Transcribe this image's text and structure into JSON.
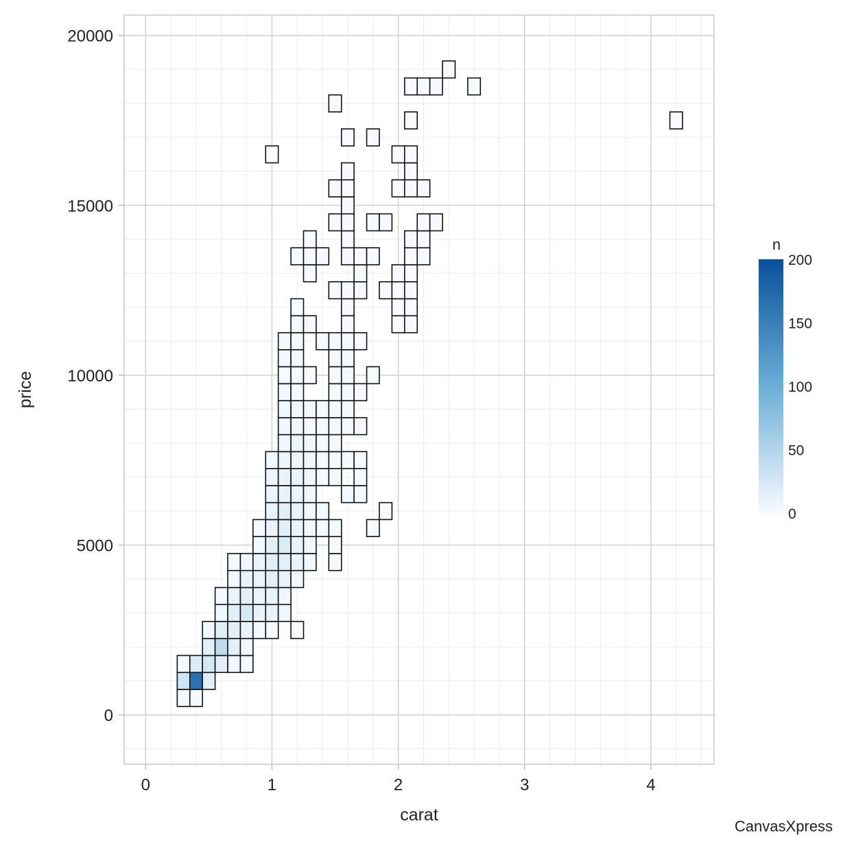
{
  "chart_data": {
    "type": "heatmap",
    "subtype": "binned-2d",
    "xlabel": "carat",
    "ylabel": "price",
    "xlim": [
      -0.17,
      4.5
    ],
    "ylim": [
      -1450,
      20600
    ],
    "xticks": [
      0,
      1,
      2,
      3,
      4
    ],
    "yticks": [
      0,
      5000,
      10000,
      15000,
      20000
    ],
    "grid": true,
    "bin_width": {
      "x": 0.1,
      "y": 500
    },
    "color_scale": {
      "title": "n",
      "min": 0,
      "max": 200,
      "ticks": [
        0,
        50,
        100,
        150,
        200
      ],
      "low_color": "#f7fbff",
      "high_color": "#08519c"
    },
    "legend_position": "right",
    "credit": "CanvasXpress",
    "bins": [
      {
        "x": 0.3,
        "y": 500,
        "n": 3
      },
      {
        "x": 0.4,
        "y": 500,
        "n": 3
      },
      {
        "x": 0.3,
        "y": 1000,
        "n": 30
      },
      {
        "x": 0.4,
        "y": 1000,
        "n": 165
      },
      {
        "x": 0.5,
        "y": 1000,
        "n": 15
      },
      {
        "x": 0.3,
        "y": 1500,
        "n": 3
      },
      {
        "x": 0.4,
        "y": 1500,
        "n": 20
      },
      {
        "x": 0.5,
        "y": 1500,
        "n": 25
      },
      {
        "x": 0.6,
        "y": 1500,
        "n": 15
      },
      {
        "x": 0.7,
        "y": 1500,
        "n": 5
      },
      {
        "x": 0.8,
        "y": 1500,
        "n": 2
      },
      {
        "x": 0.5,
        "y": 2000,
        "n": 15
      },
      {
        "x": 0.6,
        "y": 2000,
        "n": 40
      },
      {
        "x": 0.7,
        "y": 2000,
        "n": 15
      },
      {
        "x": 0.8,
        "y": 2000,
        "n": 5
      },
      {
        "x": 0.5,
        "y": 2500,
        "n": 5
      },
      {
        "x": 0.6,
        "y": 2500,
        "n": 15
      },
      {
        "x": 0.7,
        "y": 2500,
        "n": 15
      },
      {
        "x": 0.8,
        "y": 2500,
        "n": 10
      },
      {
        "x": 0.9,
        "y": 2500,
        "n": 3
      },
      {
        "x": 1.0,
        "y": 2500,
        "n": 2
      },
      {
        "x": 1.2,
        "y": 2500,
        "n": 1
      },
      {
        "x": 0.6,
        "y": 3000,
        "n": 5
      },
      {
        "x": 0.7,
        "y": 3000,
        "n": 15
      },
      {
        "x": 0.8,
        "y": 3000,
        "n": 25
      },
      {
        "x": 0.9,
        "y": 3000,
        "n": 10
      },
      {
        "x": 1.0,
        "y": 3000,
        "n": 10
      },
      {
        "x": 1.1,
        "y": 3000,
        "n": 5
      },
      {
        "x": 0.6,
        "y": 3500,
        "n": 3
      },
      {
        "x": 0.7,
        "y": 3500,
        "n": 10
      },
      {
        "x": 0.8,
        "y": 3500,
        "n": 15
      },
      {
        "x": 0.9,
        "y": 3500,
        "n": 10
      },
      {
        "x": 1.0,
        "y": 3500,
        "n": 10
      },
      {
        "x": 1.1,
        "y": 3500,
        "n": 5
      },
      {
        "x": 0.7,
        "y": 4000,
        "n": 5
      },
      {
        "x": 0.8,
        "y": 4000,
        "n": 10
      },
      {
        "x": 0.9,
        "y": 4000,
        "n": 10
      },
      {
        "x": 1.0,
        "y": 4000,
        "n": 15
      },
      {
        "x": 1.1,
        "y": 4000,
        "n": 10
      },
      {
        "x": 1.2,
        "y": 4000,
        "n": 5
      },
      {
        "x": 0.7,
        "y": 4500,
        "n": 3
      },
      {
        "x": 0.8,
        "y": 4500,
        "n": 5
      },
      {
        "x": 0.9,
        "y": 4500,
        "n": 10
      },
      {
        "x": 1.0,
        "y": 4500,
        "n": 15
      },
      {
        "x": 1.1,
        "y": 4500,
        "n": 15
      },
      {
        "x": 1.2,
        "y": 4500,
        "n": 10
      },
      {
        "x": 1.3,
        "y": 4500,
        "n": 5
      },
      {
        "x": 1.5,
        "y": 4500,
        "n": 2
      },
      {
        "x": 0.9,
        "y": 5000,
        "n": 5
      },
      {
        "x": 1.0,
        "y": 5000,
        "n": 15
      },
      {
        "x": 1.1,
        "y": 5000,
        "n": 20
      },
      {
        "x": 1.2,
        "y": 5000,
        "n": 10
      },
      {
        "x": 1.3,
        "y": 5000,
        "n": 5
      },
      {
        "x": 1.5,
        "y": 5000,
        "n": 2
      },
      {
        "x": 0.9,
        "y": 5500,
        "n": 3
      },
      {
        "x": 1.0,
        "y": 5500,
        "n": 10
      },
      {
        "x": 1.1,
        "y": 5500,
        "n": 15
      },
      {
        "x": 1.2,
        "y": 5500,
        "n": 10
      },
      {
        "x": 1.3,
        "y": 5500,
        "n": 5
      },
      {
        "x": 1.4,
        "y": 5500,
        "n": 3
      },
      {
        "x": 1.5,
        "y": 5500,
        "n": 2
      },
      {
        "x": 1.8,
        "y": 5500,
        "n": 1
      },
      {
        "x": 1.0,
        "y": 6000,
        "n": 10
      },
      {
        "x": 1.1,
        "y": 6000,
        "n": 15
      },
      {
        "x": 1.2,
        "y": 6000,
        "n": 10
      },
      {
        "x": 1.3,
        "y": 6000,
        "n": 5
      },
      {
        "x": 1.4,
        "y": 6000,
        "n": 3
      },
      {
        "x": 1.9,
        "y": 6000,
        "n": 1
      },
      {
        "x": 1.0,
        "y": 6500,
        "n": 8
      },
      {
        "x": 1.1,
        "y": 6500,
        "n": 10
      },
      {
        "x": 1.2,
        "y": 6500,
        "n": 8
      },
      {
        "x": 1.3,
        "y": 6500,
        "n": 5
      },
      {
        "x": 1.6,
        "y": 6500,
        "n": 2
      },
      {
        "x": 1.7,
        "y": 6500,
        "n": 1
      },
      {
        "x": 1.0,
        "y": 7000,
        "n": 8
      },
      {
        "x": 1.1,
        "y": 7000,
        "n": 10
      },
      {
        "x": 1.2,
        "y": 7000,
        "n": 10
      },
      {
        "x": 1.3,
        "y": 7000,
        "n": 5
      },
      {
        "x": 1.4,
        "y": 7000,
        "n": 3
      },
      {
        "x": 1.5,
        "y": 7000,
        "n": 2
      },
      {
        "x": 1.7,
        "y": 7000,
        "n": 1
      },
      {
        "x": 1.0,
        "y": 7500,
        "n": 5
      },
      {
        "x": 1.1,
        "y": 7500,
        "n": 8
      },
      {
        "x": 1.2,
        "y": 7500,
        "n": 8
      },
      {
        "x": 1.3,
        "y": 7500,
        "n": 5
      },
      {
        "x": 1.4,
        "y": 7500,
        "n": 3
      },
      {
        "x": 1.5,
        "y": 7500,
        "n": 3
      },
      {
        "x": 1.6,
        "y": 7500,
        "n": 2
      },
      {
        "x": 1.7,
        "y": 7500,
        "n": 1
      },
      {
        "x": 1.1,
        "y": 8000,
        "n": 5
      },
      {
        "x": 1.2,
        "y": 8000,
        "n": 8
      },
      {
        "x": 1.3,
        "y": 8000,
        "n": 5
      },
      {
        "x": 1.4,
        "y": 8000,
        "n": 3
      },
      {
        "x": 1.5,
        "y": 8000,
        "n": 3
      },
      {
        "x": 1.1,
        "y": 8500,
        "n": 5
      },
      {
        "x": 1.2,
        "y": 8500,
        "n": 5
      },
      {
        "x": 1.3,
        "y": 8500,
        "n": 3
      },
      {
        "x": 1.4,
        "y": 8500,
        "n": 3
      },
      {
        "x": 1.5,
        "y": 8500,
        "n": 3
      },
      {
        "x": 1.6,
        "y": 8500,
        "n": 2
      },
      {
        "x": 1.7,
        "y": 8500,
        "n": 1
      },
      {
        "x": 1.1,
        "y": 9000,
        "n": 5
      },
      {
        "x": 1.2,
        "y": 9000,
        "n": 5
      },
      {
        "x": 1.3,
        "y": 9000,
        "n": 3
      },
      {
        "x": 1.4,
        "y": 9000,
        "n": 3
      },
      {
        "x": 1.5,
        "y": 9000,
        "n": 3
      },
      {
        "x": 1.6,
        "y": 9000,
        "n": 2
      },
      {
        "x": 1.1,
        "y": 9500,
        "n": 3
      },
      {
        "x": 1.2,
        "y": 9500,
        "n": 3
      },
      {
        "x": 1.5,
        "y": 9500,
        "n": 3
      },
      {
        "x": 1.6,
        "y": 9500,
        "n": 2
      },
      {
        "x": 1.7,
        "y": 9500,
        "n": 1
      },
      {
        "x": 1.1,
        "y": 10000,
        "n": 3
      },
      {
        "x": 1.2,
        "y": 10000,
        "n": 3
      },
      {
        "x": 1.3,
        "y": 10000,
        "n": 1
      },
      {
        "x": 1.5,
        "y": 10000,
        "n": 2
      },
      {
        "x": 1.6,
        "y": 10000,
        "n": 2
      },
      {
        "x": 1.8,
        "y": 10000,
        "n": 1
      },
      {
        "x": 1.1,
        "y": 10500,
        "n": 3
      },
      {
        "x": 1.2,
        "y": 10500,
        "n": 3
      },
      {
        "x": 1.5,
        "y": 10500,
        "n": 2
      },
      {
        "x": 1.6,
        "y": 10500,
        "n": 2
      },
      {
        "x": 1.1,
        "y": 11000,
        "n": 3
      },
      {
        "x": 1.2,
        "y": 11000,
        "n": 2
      },
      {
        "x": 1.4,
        "y": 11000,
        "n": 1
      },
      {
        "x": 1.5,
        "y": 11000,
        "n": 2
      },
      {
        "x": 1.6,
        "y": 11000,
        "n": 2
      },
      {
        "x": 1.7,
        "y": 11000,
        "n": 1
      },
      {
        "x": 1.2,
        "y": 11500,
        "n": 2
      },
      {
        "x": 1.3,
        "y": 11500,
        "n": 1
      },
      {
        "x": 1.6,
        "y": 11500,
        "n": 1
      },
      {
        "x": 2.0,
        "y": 11500,
        "n": 1
      },
      {
        "x": 2.1,
        "y": 11500,
        "n": 1
      },
      {
        "x": 1.2,
        "y": 12000,
        "n": 1
      },
      {
        "x": 1.6,
        "y": 12000,
        "n": 1
      },
      {
        "x": 2.0,
        "y": 12000,
        "n": 1
      },
      {
        "x": 2.1,
        "y": 12000,
        "n": 1
      },
      {
        "x": 1.5,
        "y": 12500,
        "n": 1
      },
      {
        "x": 1.6,
        "y": 12500,
        "n": 1
      },
      {
        "x": 1.7,
        "y": 12500,
        "n": 1
      },
      {
        "x": 1.9,
        "y": 12500,
        "n": 1
      },
      {
        "x": 2.0,
        "y": 12500,
        "n": 1
      },
      {
        "x": 2.1,
        "y": 12500,
        "n": 1
      },
      {
        "x": 1.3,
        "y": 13000,
        "n": 1
      },
      {
        "x": 1.7,
        "y": 13000,
        "n": 1
      },
      {
        "x": 2.0,
        "y": 13000,
        "n": 1
      },
      {
        "x": 2.1,
        "y": 13000,
        "n": 1
      },
      {
        "x": 1.2,
        "y": 13500,
        "n": 1
      },
      {
        "x": 1.3,
        "y": 13500,
        "n": 1
      },
      {
        "x": 1.4,
        "y": 13500,
        "n": 1
      },
      {
        "x": 1.6,
        "y": 13500,
        "n": 1
      },
      {
        "x": 1.7,
        "y": 13500,
        "n": 1
      },
      {
        "x": 1.8,
        "y": 13500,
        "n": 1
      },
      {
        "x": 2.1,
        "y": 13500,
        "n": 1
      },
      {
        "x": 2.2,
        "y": 13500,
        "n": 1
      },
      {
        "x": 1.3,
        "y": 14000,
        "n": 1
      },
      {
        "x": 1.6,
        "y": 14000,
        "n": 1
      },
      {
        "x": 2.1,
        "y": 14000,
        "n": 1
      },
      {
        "x": 2.2,
        "y": 14000,
        "n": 1
      },
      {
        "x": 1.5,
        "y": 14500,
        "n": 1
      },
      {
        "x": 1.6,
        "y": 14500,
        "n": 1
      },
      {
        "x": 1.8,
        "y": 14500,
        "n": 1
      },
      {
        "x": 1.9,
        "y": 14500,
        "n": 1
      },
      {
        "x": 2.2,
        "y": 14500,
        "n": 1
      },
      {
        "x": 2.3,
        "y": 14500,
        "n": 1
      },
      {
        "x": 1.6,
        "y": 15000,
        "n": 1
      },
      {
        "x": 1.5,
        "y": 15500,
        "n": 1
      },
      {
        "x": 1.6,
        "y": 15500,
        "n": 1
      },
      {
        "x": 2.0,
        "y": 15500,
        "n": 1
      },
      {
        "x": 2.1,
        "y": 15500,
        "n": 1
      },
      {
        "x": 2.2,
        "y": 15500,
        "n": 1
      },
      {
        "x": 1.6,
        "y": 16000,
        "n": 1
      },
      {
        "x": 2.1,
        "y": 16000,
        "n": 1
      },
      {
        "x": 1.0,
        "y": 16500,
        "n": 1
      },
      {
        "x": 2.0,
        "y": 16500,
        "n": 1
      },
      {
        "x": 2.1,
        "y": 16500,
        "n": 1
      },
      {
        "x": 1.6,
        "y": 17000,
        "n": 1
      },
      {
        "x": 1.8,
        "y": 17000,
        "n": 1
      },
      {
        "x": 2.1,
        "y": 17500,
        "n": 1
      },
      {
        "x": 4.2,
        "y": 17500,
        "n": 1
      },
      {
        "x": 1.5,
        "y": 18000,
        "n": 1
      },
      {
        "x": 2.1,
        "y": 18500,
        "n": 1
      },
      {
        "x": 2.2,
        "y": 18500,
        "n": 1
      },
      {
        "x": 2.3,
        "y": 18500,
        "n": 1
      },
      {
        "x": 2.6,
        "y": 18500,
        "n": 1
      },
      {
        "x": 2.4,
        "y": 19000,
        "n": 1
      }
    ]
  }
}
